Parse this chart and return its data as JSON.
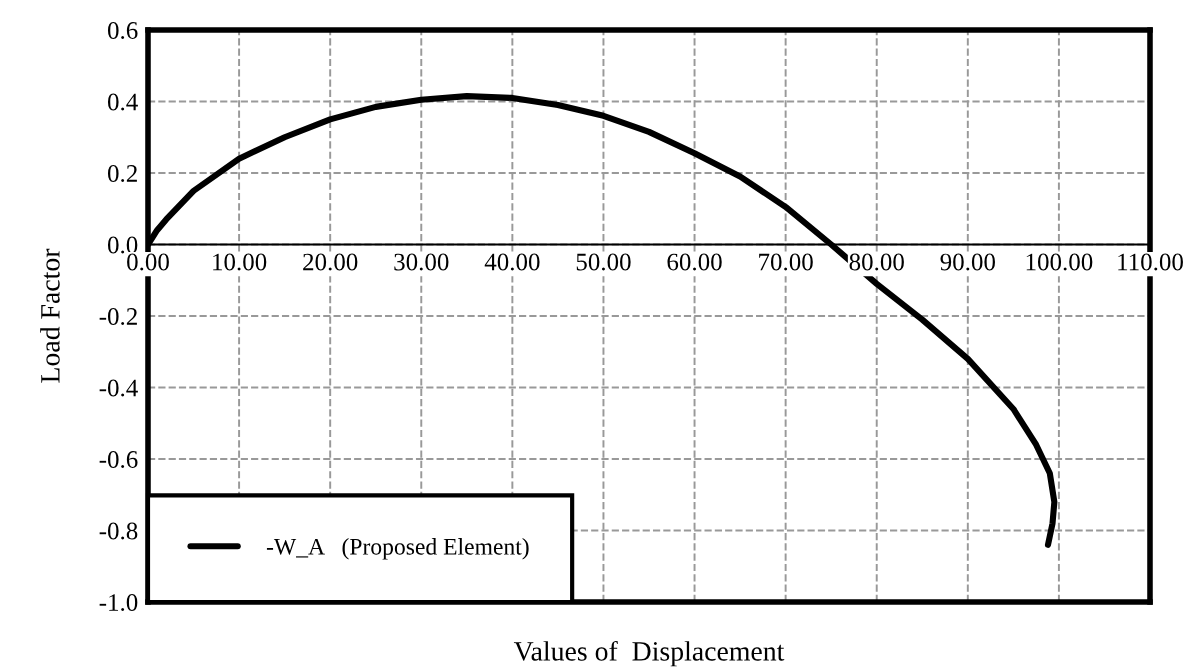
{
  "chart_data": {
    "type": "line",
    "xlabel": "Values of  Displacement",
    "ylabel": "Load Factor",
    "series": [
      {
        "name": "-W_A   (Proposed Element)",
        "color": "#000000",
        "x": [
          0,
          1,
          2,
          5,
          10,
          15,
          20,
          25,
          30,
          35,
          40,
          45,
          50,
          55,
          60,
          65,
          70,
          75,
          80,
          85,
          90,
          95,
          97.5,
          99,
          99.5,
          99.3,
          98.8
        ],
        "values": [
          0,
          0.04,
          0.07,
          0.15,
          0.24,
          0.3,
          0.35,
          0.385,
          0.405,
          0.415,
          0.41,
          0.39,
          0.36,
          0.315,
          0.255,
          0.19,
          0.105,
          0.0,
          -0.11,
          -0.21,
          -0.32,
          -0.46,
          -0.56,
          -0.64,
          -0.72,
          -0.78,
          -0.84
        ]
      }
    ],
    "xlim": [
      0,
      110
    ],
    "ylim": [
      -1.0,
      0.6
    ],
    "xticks": [
      {
        "value": 0,
        "label": "0.00"
      },
      {
        "value": 10,
        "label": "10.00"
      },
      {
        "value": 20,
        "label": "20.00"
      },
      {
        "value": 30,
        "label": "30.00"
      },
      {
        "value": 40,
        "label": "40.00"
      },
      {
        "value": 50,
        "label": "50.00"
      },
      {
        "value": 60,
        "label": "60.00"
      },
      {
        "value": 70,
        "label": "70.00"
      },
      {
        "value": 80,
        "label": "80.00"
      },
      {
        "value": 90,
        "label": "90.00"
      },
      {
        "value": 100,
        "label": "100.00"
      },
      {
        "value": 110,
        "label": "110.00"
      }
    ],
    "yticks": [
      {
        "value": 0.6,
        "label": "0.6"
      },
      {
        "value": 0.4,
        "label": "0.4"
      },
      {
        "value": 0.2,
        "label": "0.2"
      },
      {
        "value": 0.0,
        "label": "0.0"
      },
      {
        "value": -0.2,
        "label": "-0.2"
      },
      {
        "value": -0.4,
        "label": "-0.4"
      },
      {
        "value": -0.6,
        "label": "-0.6"
      },
      {
        "value": -0.8,
        "label": "-0.8"
      },
      {
        "value": -1.0,
        "label": "-1.0"
      }
    ],
    "grid": true,
    "legend": "lower left",
    "marker": "none",
    "line_style": "solid"
  }
}
